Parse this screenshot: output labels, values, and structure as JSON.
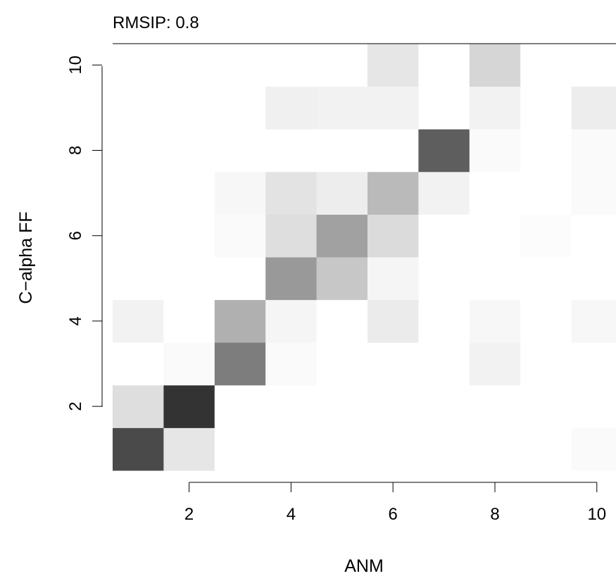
{
  "chart_data": {
    "type": "heatmap",
    "title": "RMSIP: 0.8",
    "xlabel": "ANM",
    "ylabel": "C−alpha FF",
    "x_range": [
      0.5,
      10.5
    ],
    "y_range": [
      0.5,
      10.5
    ],
    "x_ticks": [
      2,
      4,
      6,
      8,
      10
    ],
    "y_ticks": [
      2,
      4,
      6,
      8,
      10
    ],
    "color_scale": "white-to-black (value 0 = white, 1 = black)",
    "x": [
      1,
      2,
      3,
      4,
      5,
      6,
      7,
      8,
      9,
      10
    ],
    "y": [
      1,
      2,
      3,
      4,
      5,
      6,
      7,
      8,
      9,
      10
    ],
    "z": [
      [
        0.71,
        0.1,
        0,
        0,
        0,
        0,
        0,
        0,
        0,
        0.02
      ],
      [
        0.13,
        0.8,
        0,
        0,
        0,
        0,
        0,
        0,
        0,
        0
      ],
      [
        0,
        0.02,
        0.51,
        0.02,
        0,
        0,
        0,
        0.05,
        0,
        0
      ],
      [
        0.05,
        0,
        0.31,
        0.04,
        0,
        0.08,
        0,
        0.03,
        0,
        0.03
      ],
      [
        0,
        0,
        0,
        0.4,
        0.22,
        0.04,
        0,
        0,
        0,
        0
      ],
      [
        0,
        0,
        0.02,
        0.13,
        0.37,
        0.14,
        0,
        0,
        0.01,
        0
      ],
      [
        0,
        0,
        0.03,
        0.11,
        0.07,
        0.27,
        0.05,
        0,
        0,
        0.02
      ],
      [
        0,
        0,
        0,
        0,
        0,
        0,
        0.63,
        0.02,
        0,
        0.02
      ],
      [
        0,
        0,
        0,
        0.06,
        0.05,
        0.05,
        0,
        0.05,
        0,
        0.07
      ],
      [
        0,
        0,
        0,
        0,
        0,
        0.1,
        0,
        0.16,
        0,
        0
      ]
    ]
  }
}
